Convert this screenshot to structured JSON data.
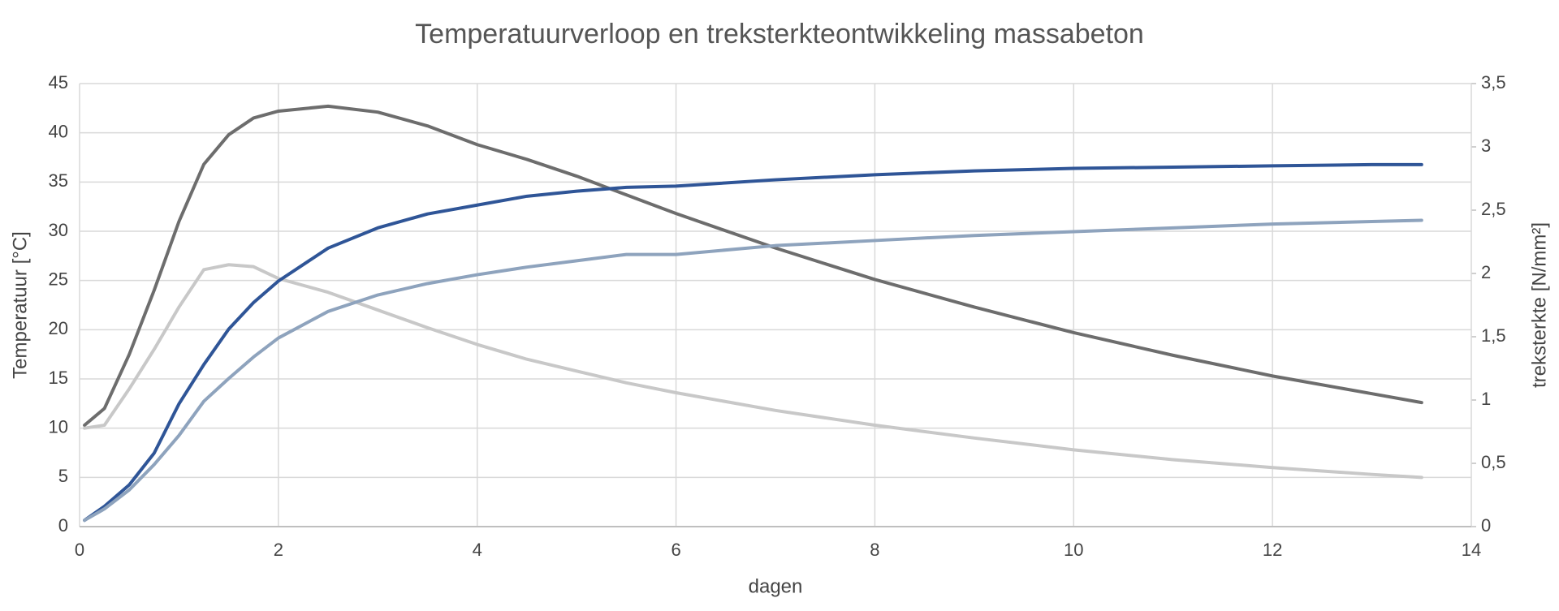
{
  "chart_data": {
    "type": "line",
    "title": "Temperatuurverloop en treksterkteontwikkeling massabeton",
    "x_label": "dagen",
    "y_label": "Temperatuur [°C]",
    "y2_label": "treksterkte [N/mm²]",
    "x": [
      0.05,
      0.25,
      0.5,
      0.75,
      1,
      1.25,
      1.5,
      1.75,
      2,
      2.5,
      3,
      3.5,
      4,
      4.5,
      5,
      5.5,
      6,
      7,
      8,
      9,
      10,
      11,
      12,
      13,
      13.5
    ],
    "series": [
      {
        "color": "#6d6d6d",
        "values": [
          10.3,
          12,
          17.5,
          24,
          31,
          36.8,
          39.8,
          41.5,
          42.2,
          42.7,
          42.1,
          40.7,
          38.8,
          37.3,
          35.6,
          33.7,
          31.8,
          28.3,
          25.1,
          22.3,
          19.7,
          17.4,
          15.3,
          13.5,
          12.6
        ]
      },
      {
        "color": "#c8c8c8",
        "values": [
          10,
          10.3,
          14,
          18,
          22.3,
          26.1,
          26.6,
          26.4,
          25.2,
          23.8,
          22,
          20.2,
          18.5,
          17,
          15.8,
          14.6,
          13.6,
          11.8,
          10.3,
          9,
          7.8,
          6.8,
          6,
          5.3,
          5
        ]
      },
      {
        "color": "#2f5597",
        "axis": "y2",
        "values": [
          0.05,
          0.16,
          0.33,
          0.58,
          0.97,
          1.28,
          1.56,
          1.77,
          1.94,
          2.2,
          2.36,
          2.47,
          2.54,
          2.61,
          2.65,
          2.68,
          2.69,
          2.74,
          2.78,
          2.81,
          2.83,
          2.84,
          2.85,
          2.86,
          2.86
        ]
      },
      {
        "color": "#8ea3bd",
        "axis": "y2",
        "values": [
          0.05,
          0.14,
          0.29,
          0.49,
          0.72,
          0.99,
          1.17,
          1.34,
          1.49,
          1.7,
          1.83,
          1.92,
          1.99,
          2.05,
          2.1,
          2.15,
          2.15,
          2.22,
          2.26,
          2.3,
          2.33,
          2.36,
          2.39,
          2.41,
          2.42
        ]
      }
    ],
    "xlim": [
      0,
      14
    ],
    "xticks": [
      0,
      2,
      4,
      6,
      8,
      10,
      12,
      14
    ],
    "ylim": [
      0,
      45
    ],
    "yticks": [
      0,
      5,
      10,
      15,
      20,
      25,
      30,
      35,
      40,
      45
    ],
    "y2lim": [
      0,
      3.5
    ],
    "y2ticks": [
      0,
      {
        "value": 0.5,
        "label": "0,5"
      },
      1,
      {
        "value": 1.5,
        "label": "1,5"
      },
      2,
      {
        "value": 2.5,
        "label": "2,5"
      },
      3,
      {
        "value": 3.5,
        "label": "3,5"
      }
    ],
    "grid": true
  }
}
